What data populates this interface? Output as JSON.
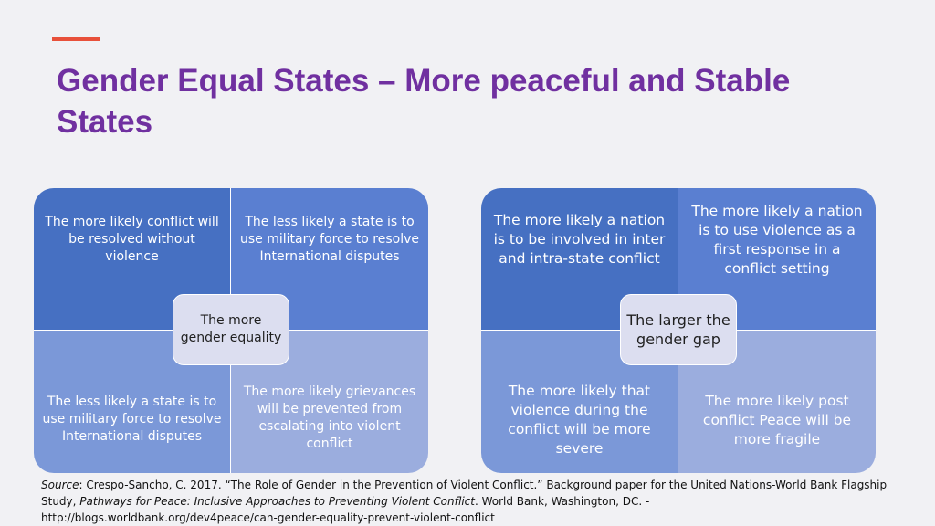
{
  "slide": {
    "title": "Gender Equal States – More peaceful and Stable States",
    "colors": {
      "title": "#7030a0",
      "accent_bar": "#e8503a",
      "quadrant_top_left": "#4670c2",
      "quadrant_top_right": "#5a7fd1",
      "quadrant_bottom_left": "#7b98d8",
      "quadrant_bottom_right": "#9badde",
      "center_box": "#dcdef0"
    }
  },
  "left_matrix": {
    "center": "The more gender equality",
    "top_left": "The more likely conflict will be resolved without violence",
    "top_right": "The less likely a state is to use military force to resolve International disputes",
    "bottom_left": "The less likely a state is to use military force to resolve International disputes",
    "bottom_right": "The more likely grievances will be prevented from escalating into violent conflict"
  },
  "right_matrix": {
    "center": "The larger the gender gap",
    "top_left": "The more likely a nation is to be involved in inter and intra-state conflict",
    "top_right": "The more likely a nation is to use violence as a first response in a conflict setting",
    "bottom_left": "The more likely that violence during the conflict will be more severe",
    "bottom_right": "The more likely post conflict Peace will be more fragile"
  },
  "source": {
    "label": "Source",
    "text_before": ": Crespo-Sancho, C. 2017. “The Role of Gender in the Prevention of Violent Conflict.” Background paper for the United Nations-World Bank Flagship Study, ",
    "publication": "Pathways for Peace: Inclusive Approaches to Preventing Violent Conflict",
    "text_after": ". World Bank, Washington, DC. -",
    "url": "http://blogs.worldbank.org/dev4peace/can-gender-equality-prevent-violent-conflict"
  }
}
